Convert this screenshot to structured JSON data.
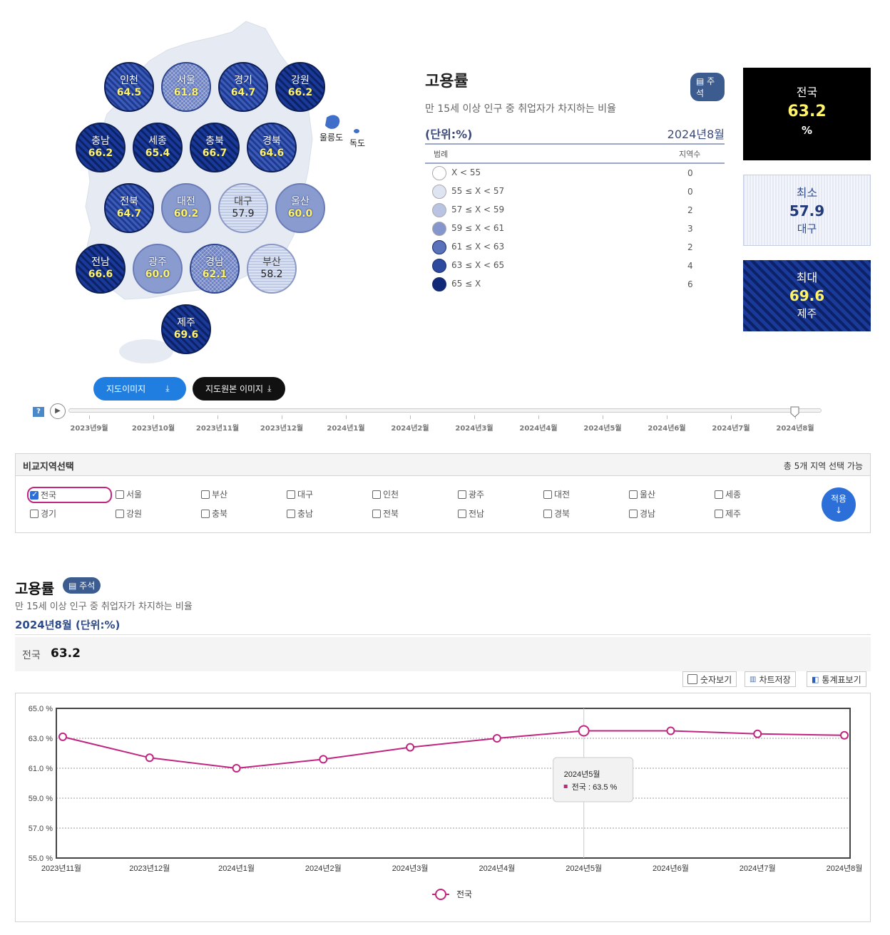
{
  "map": {
    "regions": [
      {
        "name": "인천",
        "value": "64.5",
        "level": "lv63"
      },
      {
        "name": "서울",
        "value": "61.8",
        "level": "lv61"
      },
      {
        "name": "경기",
        "value": "64.7",
        "level": "lv63"
      },
      {
        "name": "강원",
        "value": "66.2",
        "level": "lv65"
      },
      {
        "name": "충남",
        "value": "66.2",
        "level": "lv65"
      },
      {
        "name": "세종",
        "value": "65.4",
        "level": "lv65"
      },
      {
        "name": "충북",
        "value": "66.7",
        "level": "lv65"
      },
      {
        "name": "경북",
        "value": "64.6",
        "level": "lv63"
      },
      {
        "name": "전북",
        "value": "64.7",
        "level": "lv63"
      },
      {
        "name": "대전",
        "value": "60.2",
        "level": "lv59"
      },
      {
        "name": "대구",
        "value": "57.9",
        "level": "lv57"
      },
      {
        "name": "울산",
        "value": "60.0",
        "level": "lv59"
      },
      {
        "name": "전남",
        "value": "66.6",
        "level": "lv65"
      },
      {
        "name": "광주",
        "value": "60.0",
        "level": "lv59"
      },
      {
        "name": "경남",
        "value": "62.1",
        "level": "lv61"
      },
      {
        "name": "부산",
        "value": "58.2",
        "level": "lv57"
      },
      {
        "name": "제주",
        "value": "69.6",
        "level": "lv65"
      }
    ],
    "islands": {
      "ulleung": "울릉도",
      "dokdo": "독도"
    },
    "buttons": {
      "map_image": "지도이미지",
      "map_original": "지도원본 이미지"
    }
  },
  "legend": {
    "title": "고용률",
    "note": "주석",
    "subtitle": "만 15세 이상 인구 중 취업자가 차지하는 비율",
    "unit": "(단위:%)",
    "period": "2024년8월",
    "col_legend": "범례",
    "col_count": "지역수",
    "rows": [
      {
        "label": "X < 55",
        "count": "0",
        "color": "#ffffff"
      },
      {
        "label": "55 ≤ X < 57",
        "count": "0",
        "color": "#dfe4f2"
      },
      {
        "label": "57 ≤ X < 59",
        "count": "2",
        "color": "#b9c4e2"
      },
      {
        "label": "59 ≤ X < 61",
        "count": "3",
        "color": "#8596cc"
      },
      {
        "label": "61 ≤ X < 63",
        "count": "2",
        "color": "#5a72ba"
      },
      {
        "label": "63 ≤ X < 65",
        "count": "4",
        "color": "#2e4a9e"
      },
      {
        "label": "65 ≤ X",
        "count": "6",
        "color": "#102a78"
      }
    ]
  },
  "stats": {
    "national": {
      "label": "전국",
      "value": "63.2",
      "unit": "%"
    },
    "min": {
      "label": "최소",
      "value": "57.9",
      "region": "대구"
    },
    "max": {
      "label": "최대",
      "value": "69.6",
      "region": "제주"
    }
  },
  "timeline": {
    "help": "?",
    "labels": [
      "2023년9월",
      "2023년10월",
      "2023년11월",
      "2023년12월",
      "2024년1월",
      "2024년2월",
      "2024년3월",
      "2024년4월",
      "2024년5월",
      "2024년6월",
      "2024년7월",
      "2024년8월"
    ],
    "selected_index": 11
  },
  "compare": {
    "title": "비교지역선택",
    "hint": "총 5개 지역 선택 가능",
    "apply": "적용",
    "regions": [
      {
        "name": "전국",
        "checked": true
      },
      {
        "name": "서울",
        "checked": false
      },
      {
        "name": "부산",
        "checked": false
      },
      {
        "name": "대구",
        "checked": false
      },
      {
        "name": "인천",
        "checked": false
      },
      {
        "name": "광주",
        "checked": false
      },
      {
        "name": "대전",
        "checked": false
      },
      {
        "name": "울산",
        "checked": false
      },
      {
        "name": "세종",
        "checked": false
      },
      {
        "name": "경기",
        "checked": false
      },
      {
        "name": "강원",
        "checked": false
      },
      {
        "name": "충북",
        "checked": false
      },
      {
        "name": "충남",
        "checked": false
      },
      {
        "name": "전북",
        "checked": false
      },
      {
        "name": "전남",
        "checked": false
      },
      {
        "name": "경북",
        "checked": false
      },
      {
        "name": "경남",
        "checked": false
      },
      {
        "name": "제주",
        "checked": false
      }
    ]
  },
  "section": {
    "title": "고용률",
    "note": "주석",
    "subtitle": "만 15세 이상 인구 중 취업자가 차지하는 비율",
    "period_unit": "2024년8월 (단위:%)",
    "summary_label": "전국",
    "summary_value": "63.2",
    "tools": {
      "show_numbers": "숫자보기",
      "save_chart": "차트저장",
      "table_view": "통계표보기"
    }
  },
  "chart_data": {
    "type": "line",
    "categories": [
      "2023년11월",
      "2023년12월",
      "2024년1월",
      "2024년2월",
      "2024년3월",
      "2024년4월",
      "2024년5월",
      "2024년6월",
      "2024년7월",
      "2024년8월"
    ],
    "series": [
      {
        "name": "전국",
        "values": [
          63.1,
          61.7,
          61.0,
          61.6,
          62.4,
          63.0,
          63.5,
          63.5,
          63.3,
          63.2
        ],
        "color": "#c0267f"
      }
    ],
    "ylim": [
      55.0,
      65.0
    ],
    "yticks": [
      "65.0 %",
      "63.0 %",
      "61.0 %",
      "59.0 %",
      "57.0 %",
      "55.0 %"
    ],
    "grid": true,
    "legend_position": "bottom",
    "tooltip": {
      "title": "2024년5월",
      "text": "전국 : 63.5 %",
      "index": 6
    }
  }
}
